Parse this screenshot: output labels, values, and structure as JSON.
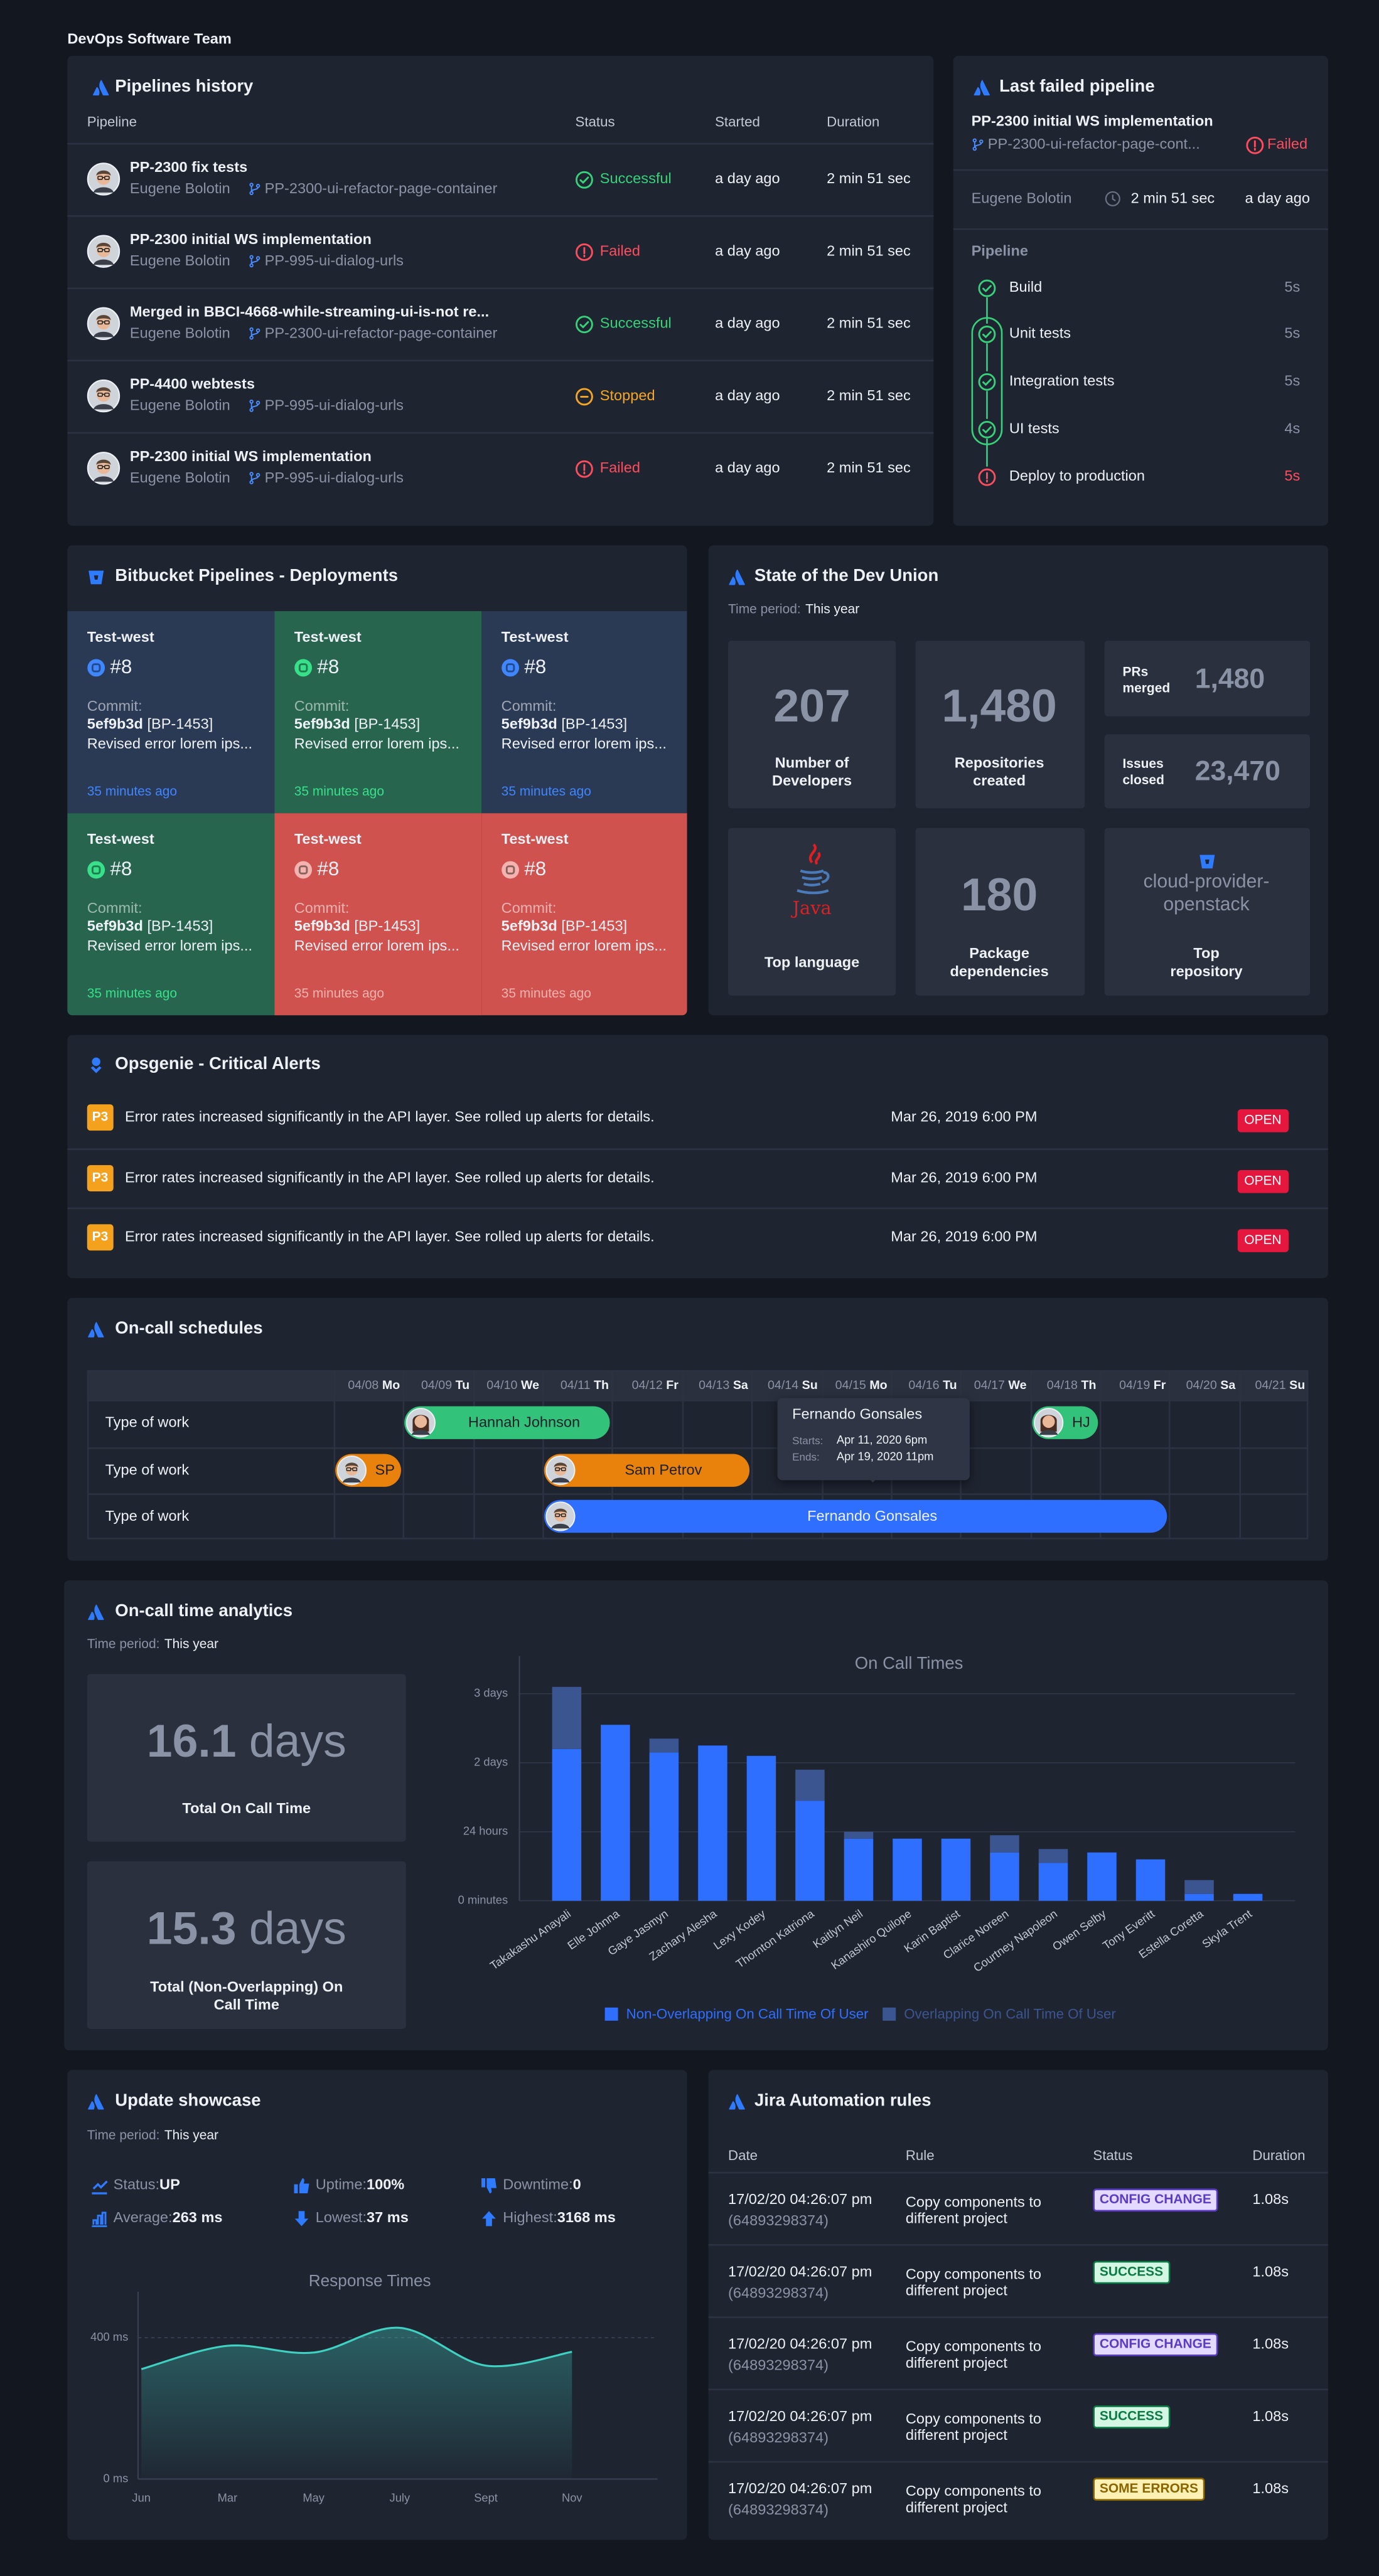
{
  "header": {
    "title": "DevOps Software Team"
  },
  "pipelines": {
    "title": "Pipelines history",
    "columns": [
      "Pipeline",
      "Status",
      "Started",
      "Duration"
    ],
    "rows": [
      {
        "name": "PP-2300 fix tests",
        "author": "Eugene Bolotin",
        "branch": "PP-2300-ui-refactor-page-container",
        "status": "Successful",
        "icon": "check",
        "status_color": "#36d27a",
        "started": "a day ago",
        "duration": "2 min 51 sec"
      },
      {
        "name": "PP-2300 initial WS implementation",
        "author": "Eugene Bolotin",
        "branch": "PP-995-ui-dialog-urls",
        "status": "Failed",
        "icon": "alert",
        "status_color": "#ff4d5e",
        "started": "a day ago",
        "duration": "2 min 51 sec"
      },
      {
        "name": "Merged in BBCI-4668-while-streaming-ui-is-not re...",
        "author": "Eugene Bolotin",
        "branch": "PP-2300-ui-refactor-page-container",
        "status": "Successful",
        "icon": "check",
        "status_color": "#36d27a",
        "started": "a day ago",
        "duration": "2 min 51 sec"
      },
      {
        "name": "PP-4400 webtests",
        "author": "Eugene Bolotin",
        "branch": "PP-995-ui-dialog-urls",
        "status": "Stopped",
        "icon": "stop",
        "status_color": "#f5a623",
        "started": "a day ago",
        "duration": "2 min 51 sec"
      },
      {
        "name": "PP-2300 initial WS implementation",
        "author": "Eugene Bolotin",
        "branch": "PP-995-ui-dialog-urls",
        "status": "Failed",
        "icon": "alert",
        "status_color": "#ff4d5e",
        "started": "a day ago",
        "duration": "2 min 51 sec"
      }
    ]
  },
  "last_failed": {
    "title": "Last failed pipeline",
    "name": "PP-2300 initial WS implementation",
    "branch": "PP-2300-ui-refactor-page-cont...",
    "status": "Failed",
    "status_color": "#ff4d5e",
    "author": "Eugene Bolotin",
    "duration": "2 min 51 sec",
    "started": "a day ago",
    "steps_title": "Pipeline",
    "steps": [
      {
        "name": "Build",
        "time": "5s",
        "icon": "check",
        "color": "#36d27a"
      },
      {
        "name": "Unit tests",
        "time": "5s",
        "icon": "check",
        "color": "#36d27a"
      },
      {
        "name": "Integration tests",
        "time": "5s",
        "icon": "check",
        "color": "#36d27a"
      },
      {
        "name": "UI tests",
        "time": "4s",
        "icon": "check",
        "color": "#36d27a"
      },
      {
        "name": "Deploy to production",
        "time": "5s",
        "icon": "alert",
        "color": "#ff4d5e"
      }
    ]
  },
  "deployments": {
    "title": "Bitbucket Pipelines - Deployments",
    "cards": [
      {
        "env": "Test-west",
        "build": "#8",
        "commit_label": "Commit:",
        "commit": "5ef9b3d",
        "ticket": "[BP-1453]",
        "message": "Revised error lorem ips...",
        "time": "35 minutes ago",
        "color": "#2a3954",
        "accent": "#3f86ff"
      },
      {
        "env": "Test-west",
        "build": "#8",
        "commit_label": "Commit:",
        "commit": "5ef9b3d",
        "ticket": "[BP-1453]",
        "message": "Revised error lorem ips...",
        "time": "35 minutes ago",
        "color": "#27654f",
        "accent": "#38e08a"
      },
      {
        "env": "Test-west",
        "build": "#8",
        "commit_label": "Commit:",
        "commit": "5ef9b3d",
        "ticket": "[BP-1453]",
        "message": "Revised error lorem ips...",
        "time": "35 minutes ago",
        "color": "#2a3954",
        "accent": "#3f86ff"
      },
      {
        "env": "Test-west",
        "build": "#8",
        "commit_label": "Commit:",
        "commit": "5ef9b3d",
        "ticket": "[BP-1453]",
        "message": "Revised error lorem ips...",
        "time": "35 minutes ago",
        "color": "#27654f",
        "accent": "#38e08a"
      },
      {
        "env": "Test-west",
        "build": "#8",
        "commit_label": "Commit:",
        "commit": "5ef9b3d",
        "ticket": "[BP-1453]",
        "message": "Revised error lorem ips...",
        "time": "35 minutes ago",
        "color": "#cf524f",
        "accent": "#f5b2ae"
      },
      {
        "env": "Test-west",
        "build": "#8",
        "commit_label": "Commit:",
        "commit": "5ef9b3d",
        "ticket": "[BP-1453]",
        "message": "Revised error lorem ips...",
        "time": "35 minutes ago",
        "color": "#cf524f",
        "accent": "#f5b2ae"
      }
    ]
  },
  "dev_union": {
    "title": "State of the Dev Union",
    "period_label": "Time period:",
    "period": "This year",
    "developers": {
      "value": "207",
      "label": "Number of Developers"
    },
    "repositories": {
      "value": "1,480",
      "label": "Repositories created"
    },
    "prs": {
      "label": "PRs merged",
      "value": "1,480"
    },
    "issues": {
      "label": "Issues closed",
      "value": "23,470"
    },
    "language": {
      "name": "Java",
      "label": "Top language"
    },
    "dependencies": {
      "value": "180",
      "label": "Package dependencies"
    },
    "repository": {
      "name": "cloud-provider-openstack",
      "label": "Top repository"
    }
  },
  "alerts": {
    "title": "Opsgenie - Critical Alerts",
    "rows": [
      {
        "priority": "P3",
        "message": "Error rates increased significantly in the API layer. See rolled up alerts for details.",
        "date": "Mar 26, 2019 6:00 PM",
        "status": "OPEN"
      },
      {
        "priority": "P3",
        "message": "Error rates increased significantly in the API layer. See rolled up alerts for details.",
        "date": "Mar 26, 2019 6:00 PM",
        "status": "OPEN"
      },
      {
        "priority": "P3",
        "message": "Error rates increased significantly in the API layer. See rolled up alerts for details.",
        "date": "Mar 26, 2019 6:00 PM",
        "status": "OPEN"
      }
    ]
  },
  "schedules": {
    "title": "On-call schedules",
    "dates": [
      {
        "date": "04/08",
        "day": "Mo"
      },
      {
        "date": "04/09",
        "day": "Tu"
      },
      {
        "date": "04/10",
        "day": "We"
      },
      {
        "date": "04/11",
        "day": "Th"
      },
      {
        "date": "04/12",
        "day": "Fr"
      },
      {
        "date": "04/13",
        "day": "Sa"
      },
      {
        "date": "04/14",
        "day": "Su"
      },
      {
        "date": "04/15",
        "day": "Mo"
      },
      {
        "date": "04/16",
        "day": "Tu"
      },
      {
        "date": "04/17",
        "day": "We"
      },
      {
        "date": "04/18",
        "day": "Th"
      },
      {
        "date": "04/19",
        "day": "Fr"
      },
      {
        "date": "04/20",
        "day": "Sa"
      },
      {
        "date": "04/21",
        "day": "Su"
      }
    ],
    "rows": [
      {
        "label": "Type of work",
        "bars": [
          {
            "from": "04/09",
            "to": "04/11",
            "label": "Hannah Johnson",
            "color": "#33c27a"
          },
          {
            "from": "04/18",
            "to": "04/18",
            "label": "HJ",
            "color": "#33c27a"
          }
        ]
      },
      {
        "label": "Type of work",
        "bars": [
          {
            "from": "04/08",
            "to": "04/08",
            "label": "SP",
            "color": "#e8820c"
          },
          {
            "from": "04/11",
            "to": "04/13",
            "label": "Sam Petrov",
            "color": "#e8820c"
          }
        ]
      },
      {
        "label": "Type of work",
        "bars": [
          {
            "from": "04/11",
            "to": "04/19",
            "label": "Fernando Gonsales",
            "color": "#2f6fff"
          }
        ]
      }
    ],
    "tooltip": {
      "name": "Fernando Gonsales",
      "starts_label": "Starts:",
      "starts": "Apr 11, 2020 6pm",
      "ends_label": "Ends:",
      "ends": "Apr 19, 2020 11pm"
    }
  },
  "analytics": {
    "title": "On-call time analytics",
    "period_label": "Time period:",
    "period": "This year",
    "total": {
      "value": "16.1",
      "unit": "days",
      "label": "Total On Call Time"
    },
    "non_overlapping": {
      "value": "15.3",
      "unit": "days",
      "label": "Total (Non-Overlapping) On Call Time"
    }
  },
  "showcase": {
    "title": "Update showcase",
    "period_label": "Time period:",
    "period": "This year",
    "metrics": [
      {
        "label": "Status:",
        "value": "UP"
      },
      {
        "label": "Uptime:",
        "value": "100%"
      },
      {
        "label": "Downtime:",
        "value": "0"
      },
      {
        "label": "Average:",
        "value": "263 ms"
      },
      {
        "label": "Lowest:",
        "value": "37 ms"
      },
      {
        "label": "Highest:",
        "value": "3168 ms"
      }
    ]
  },
  "jira": {
    "title": "Jira Automation rules",
    "columns": [
      "Date",
      "Rule",
      "Status",
      "Duration"
    ],
    "rows": [
      {
        "date": "17/02/20 04:26:07 pm",
        "id": "(64893298374)",
        "rule": "Copy components to different project",
        "status": "CONFIG CHANGE",
        "status_colors": [
          "#e4daff",
          "#5b3cc4"
        ],
        "duration": "1.08s"
      },
      {
        "date": "17/02/20 04:26:07 pm",
        "id": "(64893298374)",
        "rule": "Copy components to different project",
        "status": "SUCCESS",
        "status_colors": [
          "#d4f7e3",
          "#0a7a45"
        ],
        "duration": "1.08s"
      },
      {
        "date": "17/02/20 04:26:07 pm",
        "id": "(64893298374)",
        "rule": "Copy components to different project",
        "status": "CONFIG CHANGE",
        "status_colors": [
          "#e4daff",
          "#5b3cc4"
        ],
        "duration": "1.08s"
      },
      {
        "date": "17/02/20 04:26:07 pm",
        "id": "(64893298374)",
        "rule": "Copy components to different project",
        "status": "SUCCESS",
        "status_colors": [
          "#d4f7e3",
          "#0a7a45"
        ],
        "duration": "1.08s"
      },
      {
        "date": "17/02/20 04:26:07 pm",
        "id": "(64893298374)",
        "rule": "Copy components to different project",
        "status": "SOME ERRORS",
        "status_colors": [
          "#fff0b3",
          "#8a6500"
        ],
        "duration": "1.08s"
      }
    ]
  },
  "chart_data": [
    {
      "type": "stacked-bar",
      "title": "On Call Times",
      "categories": [
        "Takakashu Anayali",
        "Elle Johnna",
        "Gaye Jasmyn",
        "Zachary Alesha",
        "Lexy Kodey",
        "Thornton Katriona",
        "Kaitlyn Neil",
        "Kanashiro Quilope",
        "Karin Baptist",
        "Clarice Noreen",
        "Courtney Napoleon",
        "Owen Selby",
        "Tony Everitt",
        "Estella Coretta",
        "Skyla Trent"
      ],
      "series": [
        {
          "name": "Non-Overlapping On Call Time Of User",
          "color": "#2f6fff",
          "values": [
            2.2,
            2.55,
            2.15,
            2.25,
            2.1,
            1.45,
            0.9,
            0.9,
            0.9,
            0.7,
            0.55,
            0.7,
            0.6,
            0.1,
            0.1
          ]
        },
        {
          "name": "Overlapping On Call Time Of User",
          "color": "#3a5590",
          "values": [
            0.9,
            0,
            0.2,
            0,
            0,
            0.45,
            0.1,
            0,
            0,
            0.25,
            0.2,
            0,
            0,
            0.2,
            0
          ]
        }
      ],
      "ylim": [
        0,
        3.5
      ],
      "yticks": [
        {
          "value": 0,
          "label": "0 minutes"
        },
        {
          "value": 1,
          "label": "24 hours"
        },
        {
          "value": 2,
          "label": "2 days"
        },
        {
          "value": 3,
          "label": "3 days"
        }
      ],
      "grid": true
    },
    {
      "type": "area",
      "title": "Response Times",
      "categories": [
        "Jun",
        "Mar",
        "May",
        "July",
        "Sept",
        "Nov"
      ],
      "values": [
        311,
        377,
        358,
        428,
        321,
        360
      ],
      "color": "#3fd1c2",
      "ylim": [
        0,
        530
      ],
      "yticks": [
        {
          "value": 0,
          "label": "0 ms"
        },
        {
          "value": 400,
          "label": "400 ms"
        }
      ],
      "grid": true
    }
  ]
}
